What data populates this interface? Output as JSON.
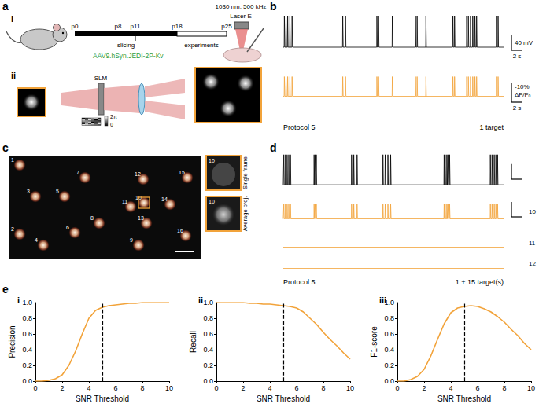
{
  "panels": {
    "a": {
      "label": "a",
      "i": {
        "label": "i",
        "timeline": {
          "ticks": [
            "p0",
            "p8",
            "p11",
            "p18",
            "p25"
          ],
          "slicing": "slicing",
          "experiments": "experiments",
          "virus": "AAV9.hSyn.JEDI-2P-Kv"
        },
        "laser": {
          "spec": "1030 nm, 500 kHz",
          "name": "Laser E"
        }
      },
      "ii": {
        "label": "ii",
        "slm": "SLM",
        "phase_max": "2π",
        "phase_min": "0"
      }
    },
    "b": {
      "label": "b",
      "xlim": [
        0,
        40
      ],
      "ephys": {
        "ylim": [
          -70,
          30
        ],
        "baseline": -60,
        "spike_peak": 20,
        "color": "#000000",
        "spike_times": [
          0.2,
          0.5,
          0.8,
          1.2,
          1.6,
          10.8,
          11.3,
          17.0,
          17.3,
          19.8,
          24.0,
          24.3,
          25.9,
          30.8,
          31.1,
          33.3,
          33.6,
          34.0,
          34.4,
          34.8,
          35.1,
          38.7,
          39.0
        ]
      },
      "fluorescence": {
        "ylim": [
          -15,
          5
        ],
        "baseline": 0,
        "spike_peak": -10,
        "color": "#f2a33a",
        "spike_times": [
          0.2,
          0.5,
          0.8,
          1.2,
          1.6,
          10.8,
          11.3,
          17.0,
          17.3,
          19.8,
          24.0,
          24.3,
          25.9,
          30.8,
          31.1,
          33.3,
          33.6,
          34.0,
          34.4,
          34.8,
          35.1,
          38.7,
          39.0
        ]
      },
      "scalebars": {
        "voltage": 40,
        "voltage_label": "40 mV",
        "dff": -10,
        "dff_label": "-10%",
        "dff_unit": "ΔF/F₀",
        "time": 2,
        "time_label": "2 s"
      },
      "protocol": "Protocol 5",
      "targets": "1 target"
    },
    "c": {
      "label": "c",
      "cells": [
        "1",
        "2",
        "3",
        "4",
        "5",
        "6",
        "7",
        "8",
        "9",
        "10",
        "11",
        "12",
        "13",
        "14",
        "15",
        "16"
      ],
      "inset": {
        "cell": "10",
        "top": "Single frame",
        "bottom": "Average proj."
      }
    },
    "d": {
      "label": "d",
      "xlim": [
        0,
        40
      ],
      "ephys": {
        "ylim": [
          -70,
          30
        ],
        "baseline": -60,
        "spike_peak": 20,
        "color": "#000000",
        "spike_times": [
          0.1,
          0.4,
          0.7,
          1.0,
          1.3,
          5.6,
          5.8,
          6.0,
          12.4,
          12.8,
          13.4,
          18.1,
          18.5,
          19.0,
          19.5,
          29.2,
          29.4,
          29.7,
          29.9,
          30.2,
          37.6,
          37.9,
          38.3,
          38.6,
          38.9
        ]
      },
      "fluorescence": [
        {
          "name": "10",
          "ylim": [
            -15,
            5
          ],
          "baseline": 0,
          "spike_peak": -10,
          "color": "#f2a33a",
          "spike_times": [
            0.1,
            0.4,
            0.7,
            1.0,
            1.3,
            5.6,
            5.8,
            6.0,
            12.4,
            12.8,
            13.4,
            18.1,
            18.5,
            19.0,
            19.5,
            29.2,
            29.4,
            29.7,
            29.9,
            30.2,
            37.6,
            37.9,
            38.3,
            38.6,
            38.9
          ]
        },
        {
          "name": "11",
          "ylim": [
            -15,
            5
          ],
          "baseline": 0,
          "spike_peak": -10,
          "color": "#f2a33a",
          "spike_times": []
        },
        {
          "name": "12",
          "ylim": [
            -15,
            5
          ],
          "baseline": 0,
          "spike_peak": -10,
          "color": "#f2a33a",
          "spike_times": []
        }
      ],
      "scalebars": {
        "voltage": 40,
        "dff": -10,
        "time": 2
      },
      "protocol": "Protocol 5",
      "targets": "1 + 15 target(s)"
    },
    "e": {
      "label": "e"
    }
  },
  "chart_data": [
    {
      "type": "line",
      "panel": "i",
      "xlabel": "SNR Threshold",
      "ylabel": "Precision",
      "x": [
        0,
        0.5,
        1,
        1.5,
        2,
        2.5,
        3,
        3.5,
        4,
        4.5,
        5,
        5.5,
        6,
        6.5,
        7,
        7.5,
        8,
        8.5,
        9,
        9.5,
        10
      ],
      "values": [
        0,
        0,
        0.01,
        0.03,
        0.08,
        0.2,
        0.38,
        0.6,
        0.8,
        0.9,
        0.94,
        0.96,
        0.97,
        0.98,
        0.99,
        0.99,
        1,
        1,
        1,
        1,
        1
      ],
      "color": "#f2a33a",
      "threshold": 5,
      "xlim": [
        0,
        10
      ],
      "xticks": [
        0,
        2,
        4,
        6,
        8,
        10
      ],
      "ylim": [
        0,
        1
      ],
      "yticks": [
        {
          "value": 0,
          "label": "0.0"
        },
        0.2,
        0.4,
        0.6,
        0.8,
        {
          "value": 1,
          "label": "1.0"
        }
      ],
      "grid": false
    },
    {
      "type": "line",
      "panel": "ii",
      "xlabel": "SNR Threshold",
      "ylabel": "Recall",
      "x": [
        0,
        0.5,
        1,
        1.5,
        2,
        2.5,
        3,
        3.5,
        4,
        4.5,
        5,
        5.5,
        6,
        6.5,
        7,
        7.5,
        8,
        8.5,
        9,
        9.5,
        10
      ],
      "values": [
        1,
        1,
        1,
        1,
        1,
        0.99,
        0.99,
        0.98,
        0.98,
        0.97,
        0.96,
        0.95,
        0.93,
        0.88,
        0.8,
        0.72,
        0.62,
        0.53,
        0.45,
        0.36,
        0.28
      ],
      "color": "#f2a33a",
      "threshold": 5,
      "xlim": [
        0,
        10
      ],
      "xticks": [
        0,
        2,
        4,
        6,
        8,
        10
      ],
      "ylim": [
        0,
        1
      ],
      "yticks": [
        {
          "value": 0,
          "label": "0.0"
        },
        0.2,
        0.4,
        0.6,
        0.8,
        {
          "value": 1,
          "label": "1.0"
        }
      ],
      "grid": false
    },
    {
      "type": "line",
      "panel": "iii",
      "xlabel": "SNR Threshold",
      "ylabel": "F1-score",
      "x": [
        0,
        0.5,
        1,
        1.5,
        2,
        2.5,
        3,
        3.5,
        4,
        4.5,
        5,
        5.5,
        6,
        6.5,
        7,
        7.5,
        8,
        8.5,
        9,
        9.5,
        10
      ],
      "values": [
        0,
        0,
        0.02,
        0.06,
        0.15,
        0.32,
        0.53,
        0.73,
        0.87,
        0.93,
        0.95,
        0.96,
        0.95,
        0.92,
        0.88,
        0.82,
        0.75,
        0.66,
        0.58,
        0.48,
        0.4
      ],
      "color": "#f2a33a",
      "threshold": 5,
      "xlim": [
        0,
        10
      ],
      "xticks": [
        0,
        2,
        4,
        6,
        8,
        10
      ],
      "ylim": [
        0,
        1
      ],
      "yticks": [
        {
          "value": 0,
          "label": "0.0"
        },
        0.2,
        0.4,
        0.6,
        0.8,
        {
          "value": 1,
          "label": "1.0"
        }
      ],
      "grid": false
    }
  ]
}
